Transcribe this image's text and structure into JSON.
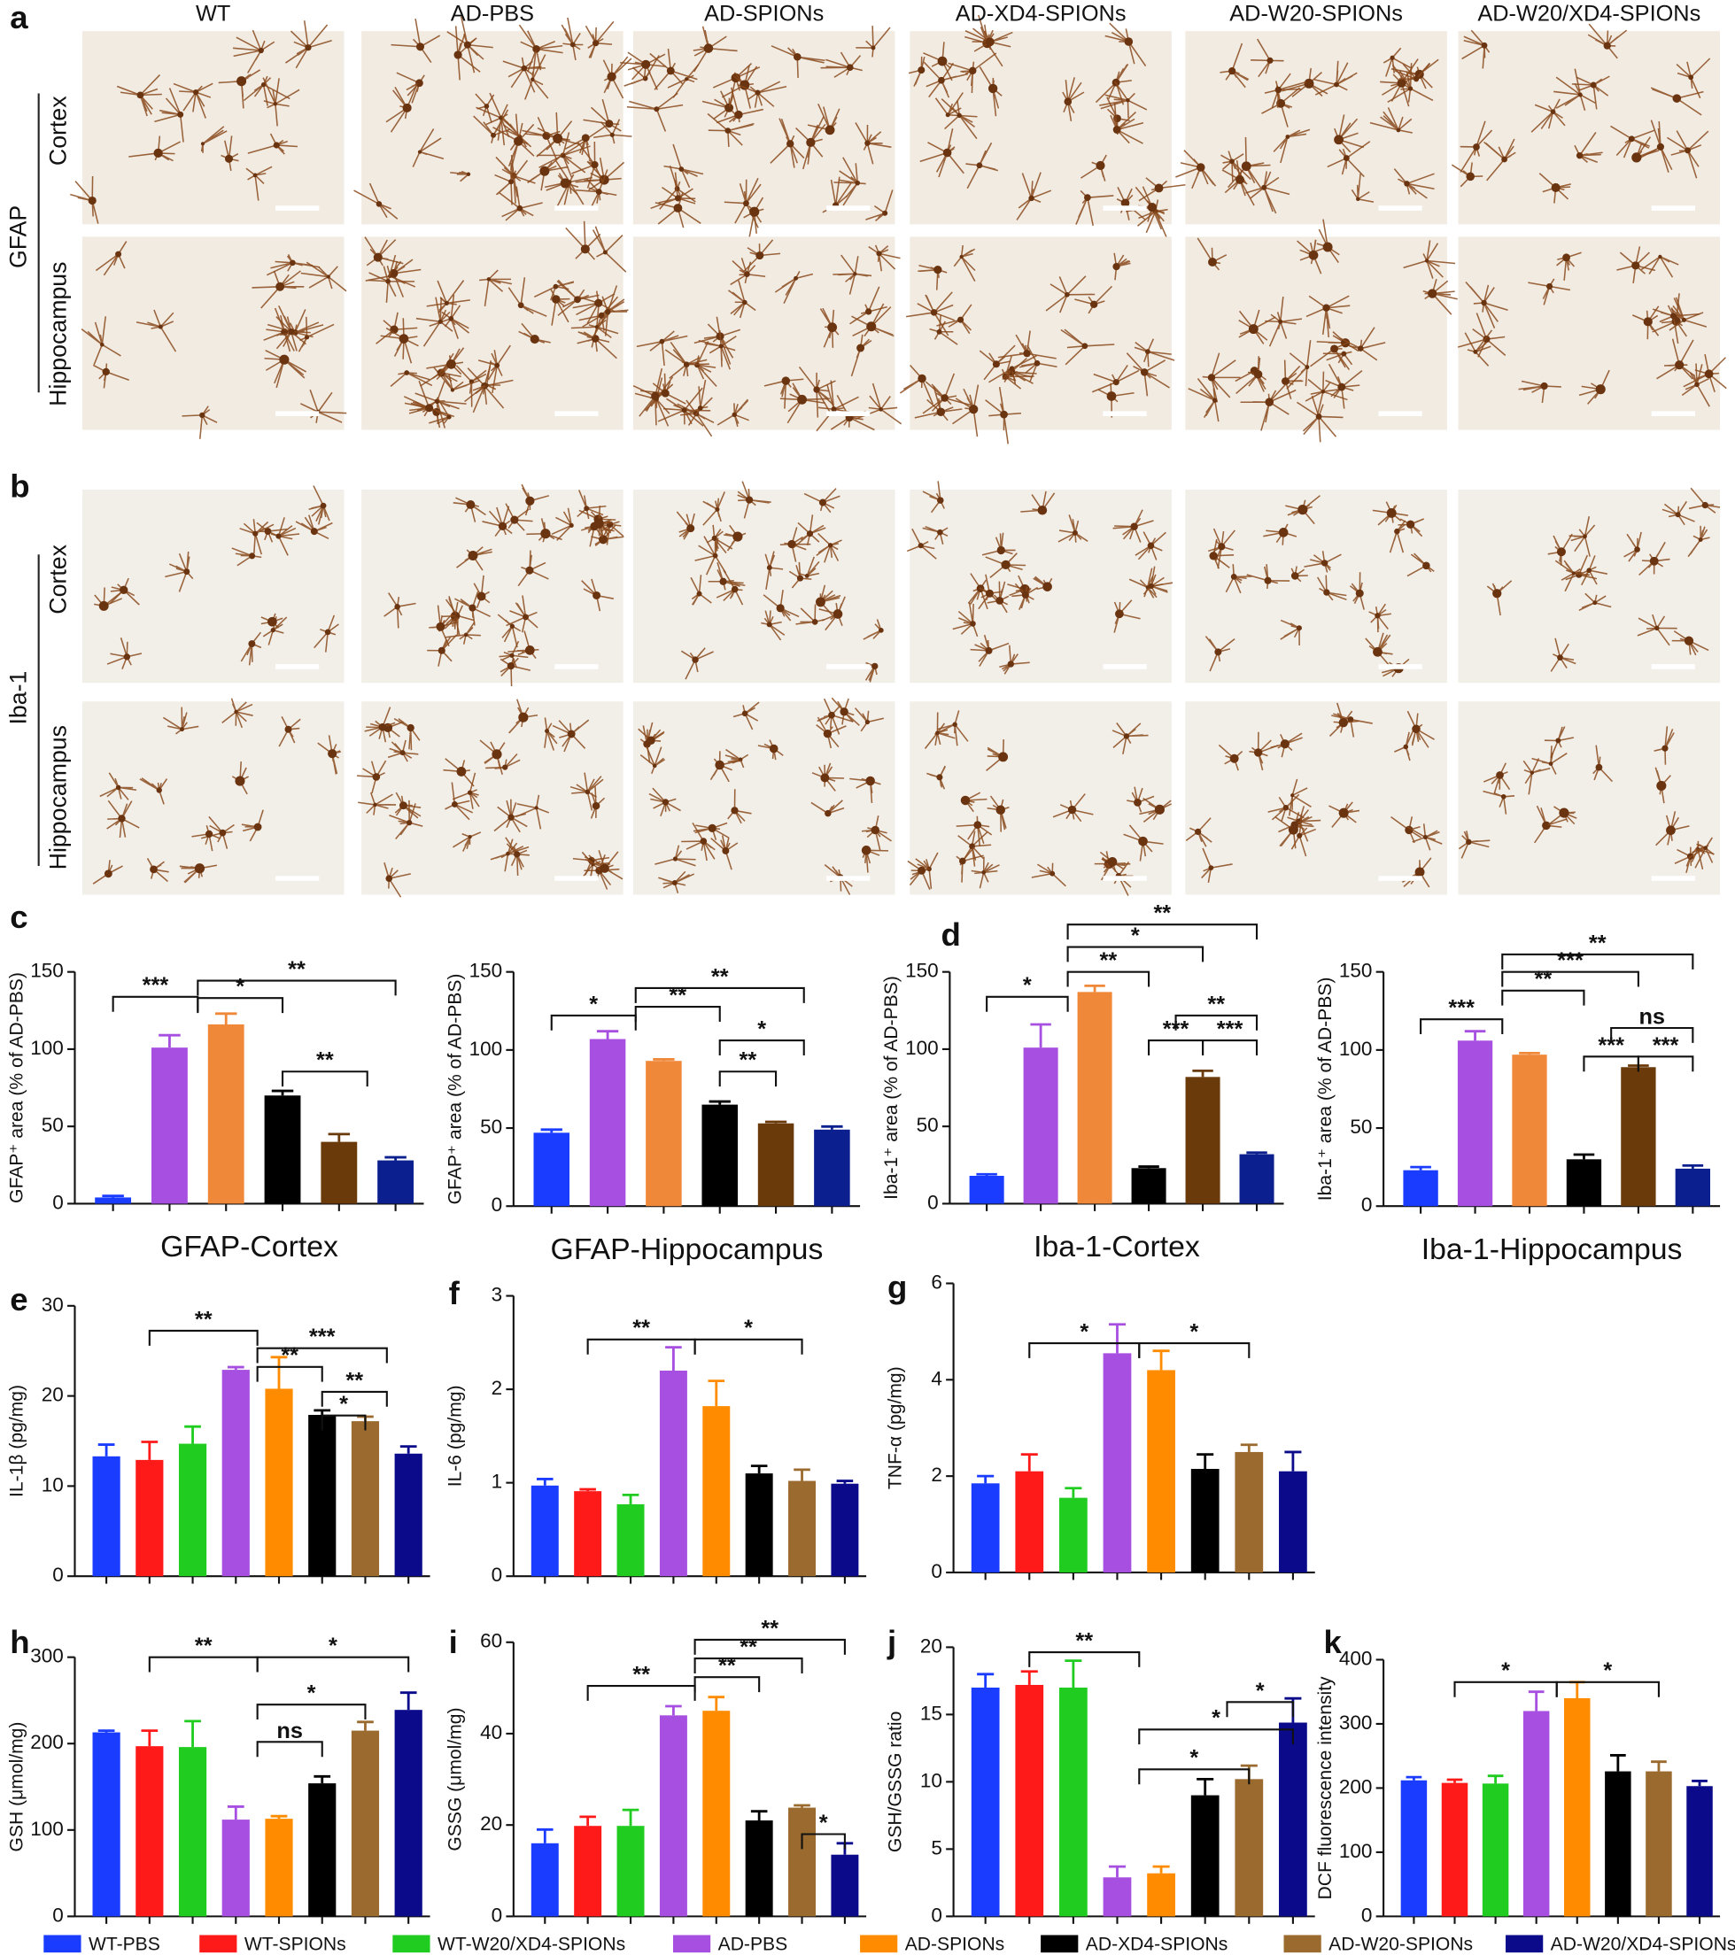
{
  "figure": {
    "panel_labels": [
      "a",
      "b",
      "c",
      "d",
      "e",
      "f",
      "g",
      "h",
      "i",
      "j",
      "k"
    ],
    "columns": [
      "WT",
      "AD-PBS",
      "AD-SPIONs",
      "AD-XD4-SPIONs",
      "AD-W20-SPIONs",
      "AD-W20/XD4-SPIONs"
    ],
    "rows_a": {
      "marker": "GFAP",
      "regions": [
        "Cortex",
        "Hippocampus"
      ]
    },
    "rows_b": {
      "marker": "Iba-1",
      "regions": [
        "Cortex",
        "Hippocampus"
      ]
    }
  },
  "legend": [
    {
      "name": "WT-PBS",
      "color": "#1a3cff"
    },
    {
      "name": "WT-SPIONs",
      "color": "#ff1a1a"
    },
    {
      "name": "WT-W20/XD4-SPIONs",
      "color": "#1fcc1f"
    },
    {
      "name": "AD-PBS",
      "color": "#a64fe0"
    },
    {
      "name": "AD-SPIONs",
      "color": "#ff8c00"
    },
    {
      "name": "AD-XD4-SPIONs",
      "color": "#000000"
    },
    {
      "name": "AD-W20-SPIONs",
      "color": "#9b6a2e"
    },
    {
      "name": "AD-W20/XD4-SPIONs",
      "color": "#0a0a8a"
    }
  ],
  "chart_data": [
    {
      "type": "bar",
      "title": "GFAP-Cortex",
      "ylabel": "GFAP⁺ area (% of AD-PBS)",
      "values": [
        4,
        101,
        116,
        70,
        40,
        28
      ],
      "errors": [
        1,
        8,
        7,
        3,
        5,
        2
      ],
      "colors": [
        "#1a3cff",
        "#a64fe0",
        "#f0883a",
        "#000000",
        "#6b3a0a",
        "#0b1f8f"
      ],
      "ylim": [
        0,
        150
      ],
      "yticks": [
        0,
        50,
        100,
        150
      ],
      "annotations": [
        "***",
        "**",
        "*",
        "**"
      ]
    },
    {
      "type": "bar",
      "title": "GFAP-Hippocampus",
      "ylabel": "GFAP⁺ area (% of AD-PBS)",
      "values": [
        47,
        107,
        93,
        65,
        53,
        49
      ],
      "errors": [
        2,
        5,
        1,
        2,
        1,
        2
      ],
      "colors": [
        "#1a3cff",
        "#a64fe0",
        "#f0883a",
        "#000000",
        "#6b3a0a",
        "#0b1f8f"
      ],
      "ylim": [
        0,
        150
      ],
      "yticks": [
        0,
        50,
        100,
        150
      ],
      "annotations": [
        "*",
        "**",
        "**",
        "*",
        "**"
      ]
    },
    {
      "type": "bar",
      "title": "Iba-1-Cortex",
      "ylabel": "Iba-1⁺ area (% of AD-PBS)",
      "values": [
        18,
        101,
        137,
        23,
        82,
        32
      ],
      "errors": [
        1,
        15,
        4,
        1,
        4,
        1
      ],
      "colors": [
        "#1a3cff",
        "#a64fe0",
        "#f0883a",
        "#000000",
        "#6b3a0a",
        "#0b1f8f"
      ],
      "ylim": [
        0,
        150
      ],
      "yticks": [
        0,
        50,
        100,
        150
      ],
      "annotations": [
        "**",
        "*",
        "**",
        "*",
        "**",
        "***",
        "***"
      ]
    },
    {
      "type": "bar",
      "title": "Iba-1-Hippocampus",
      "ylabel": "Iba-1⁺ area (% of AD-PBS)",
      "values": [
        23,
        106,
        97,
        30,
        89,
        24
      ],
      "errors": [
        2,
        6,
        1,
        3,
        1,
        2
      ],
      "colors": [
        "#1a3cff",
        "#a64fe0",
        "#f0883a",
        "#000000",
        "#6b3a0a",
        "#0b1f8f"
      ],
      "ylim": [
        0,
        150
      ],
      "yticks": [
        0,
        50,
        100,
        150
      ],
      "annotations": [
        "**",
        "***",
        "**",
        "***",
        "ns",
        "***",
        "***"
      ]
    },
    {
      "type": "bar",
      "ylabel": "IL-1β (pg/mg)",
      "values": [
        13.3,
        12.9,
        14.7,
        22.9,
        20.8,
        17.9,
        17.2,
        13.6
      ],
      "errors": [
        1.3,
        2,
        1.9,
        0.3,
        3.5,
        0.5,
        0.5,
        0.8
      ],
      "colors": [
        "#1a3cff",
        "#ff1a1a",
        "#1fcc1f",
        "#a64fe0",
        "#ff8c00",
        "#000000",
        "#9b6a2e",
        "#0a0a8a"
      ],
      "ylim": [
        0,
        30
      ],
      "yticks": [
        0,
        10,
        20,
        30
      ],
      "annotations": [
        "**",
        "***",
        "**",
        "**",
        "*"
      ]
    },
    {
      "type": "bar",
      "ylabel": "IL-6 (pg/mg)",
      "values": [
        0.97,
        0.91,
        0.77,
        2.2,
        1.82,
        1.1,
        1.02,
        0.99
      ],
      "errors": [
        0.07,
        0.02,
        0.1,
        0.25,
        0.27,
        0.08,
        0.12,
        0.03
      ],
      "colors": [
        "#1a3cff",
        "#ff1a1a",
        "#1fcc1f",
        "#a64fe0",
        "#ff8c00",
        "#000000",
        "#9b6a2e",
        "#0a0a8a"
      ],
      "ylim": [
        0,
        3
      ],
      "yticks": [
        0,
        1,
        2,
        3
      ],
      "annotations": [
        "**",
        "*"
      ]
    },
    {
      "type": "bar",
      "ylabel": "TNF-α (pg/mg)",
      "values": [
        1.85,
        2.1,
        1.55,
        4.55,
        4.2,
        2.15,
        2.5,
        2.1
      ],
      "errors": [
        0.15,
        0.35,
        0.2,
        0.6,
        0.4,
        0.3,
        0.15,
        0.4
      ],
      "colors": [
        "#1a3cff",
        "#ff1a1a",
        "#1fcc1f",
        "#a64fe0",
        "#ff8c00",
        "#000000",
        "#9b6a2e",
        "#0a0a8a"
      ],
      "ylim": [
        0,
        6
      ],
      "yticks": [
        0,
        2,
        4,
        6
      ],
      "annotations": [
        "*",
        "*"
      ]
    },
    {
      "type": "bar",
      "ylabel": "GSH (μmol/mg)",
      "values": [
        213,
        197,
        196,
        112,
        113,
        154,
        215,
        239
      ],
      "errors": [
        2,
        18,
        30,
        15,
        3,
        8,
        10,
        20
      ],
      "colors": [
        "#1a3cff",
        "#ff1a1a",
        "#1fcc1f",
        "#a64fe0",
        "#ff8c00",
        "#000000",
        "#9b6a2e",
        "#0a0a8a"
      ],
      "ylim": [
        0,
        300
      ],
      "yticks": [
        0,
        100,
        200,
        300
      ],
      "annotations": [
        "**",
        "*",
        "*",
        "ns"
      ]
    },
    {
      "type": "bar",
      "ylabel": "GSSG (μmol/mg)",
      "values": [
        16,
        19.8,
        19.8,
        44,
        45,
        21,
        23.8,
        13.5
      ],
      "errors": [
        3,
        2,
        3.5,
        2,
        3,
        2,
        0.5,
        2.5
      ],
      "colors": [
        "#1a3cff",
        "#ff1a1a",
        "#1fcc1f",
        "#a64fe0",
        "#ff8c00",
        "#000000",
        "#9b6a2e",
        "#0a0a8a"
      ],
      "ylim": [
        0,
        60
      ],
      "yticks": [
        0,
        20,
        40,
        60
      ],
      "annotations": [
        "**",
        "**",
        "**",
        "**",
        "*"
      ]
    },
    {
      "type": "bar",
      "ylabel": "GSH/GSSG ratio",
      "values": [
        17,
        17.2,
        17,
        2.9,
        3.2,
        9,
        10.2,
        14.4
      ],
      "errors": [
        1,
        1,
        2,
        0.8,
        0.5,
        1.2,
        1,
        1.8
      ],
      "colors": [
        "#1a3cff",
        "#ff1a1a",
        "#1fcc1f",
        "#a64fe0",
        "#ff8c00",
        "#000000",
        "#9b6a2e",
        "#0a0a8a"
      ],
      "ylim": [
        0,
        20
      ],
      "yticks": [
        0,
        5,
        10,
        15,
        20
      ],
      "annotations": [
        "**",
        "*",
        "*",
        "*"
      ]
    },
    {
      "type": "bar",
      "ylabel": "DCF fluorescence intensity",
      "values": [
        212,
        208,
        207,
        320,
        340,
        226,
        226,
        203
      ],
      "errors": [
        5,
        5,
        12,
        30,
        25,
        25,
        15,
        8
      ],
      "colors": [
        "#1a3cff",
        "#ff1a1a",
        "#1fcc1f",
        "#a64fe0",
        "#ff8c00",
        "#000000",
        "#9b6a2e",
        "#0a0a8a"
      ],
      "ylim": [
        0,
        400
      ],
      "yticks": [
        0,
        100,
        200,
        300,
        400
      ],
      "annotations": [
        "*",
        "*"
      ]
    }
  ]
}
